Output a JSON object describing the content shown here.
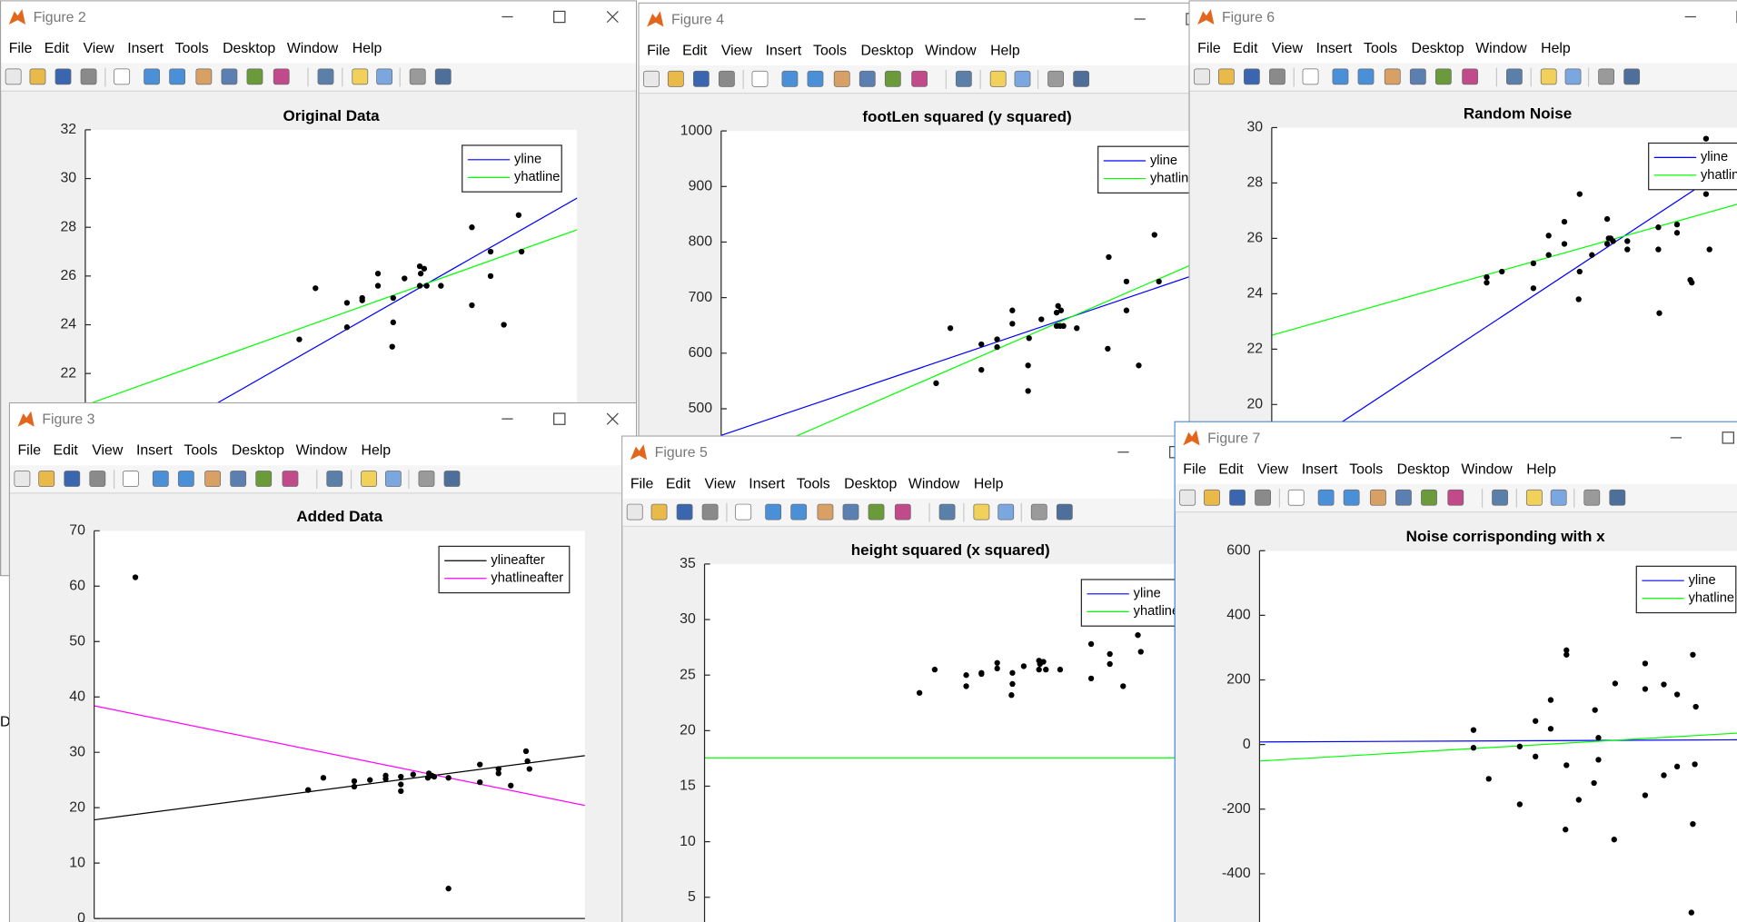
{
  "menu": [
    "File",
    "Edit",
    "View",
    "Insert",
    "Tools",
    "Desktop",
    "Window",
    "Help"
  ],
  "background_fragment": "D",
  "windows": [
    {
      "title": "Figure 2",
      "chart": {
        "type": "scatter",
        "title": "Original Data",
        "xlim": [
          0,
          100
        ],
        "ylim": [
          18,
          32
        ],
        "yticks": [
          22,
          24,
          26,
          28,
          30,
          32
        ],
        "legend_corner": "upper right",
        "legend": [
          {
            "name": "yline",
            "color": "#0000ff"
          },
          {
            "name": "yhatline",
            "color": "#00ff00"
          }
        ],
        "lines": [
          {
            "color": "#0000ff",
            "x": [
              0,
              100
            ],
            "values": [
              17.7,
              29.2
            ]
          },
          {
            "color": "#00ff00",
            "x": [
              0,
              100
            ],
            "values": [
              20.7,
              27.9
            ]
          }
        ],
        "points": {
          "color": "#000000",
          "x": [
            43.5,
            46.8,
            53.2,
            53.2,
            56.3,
            56.3,
            59.5,
            59.5,
            62.6,
            62.6,
            62.4,
            64.9,
            68.0,
            68.2,
            68.9,
            68.0,
            69.4,
            72.3,
            78.6,
            78.6,
            82.4,
            82.4,
            85.1,
            88.1,
            88.7
          ],
          "values": [
            23.4,
            25.5,
            24.9,
            23.9,
            25.0,
            25.1,
            26.1,
            25.6,
            25.1,
            24.1,
            23.1,
            25.9,
            26.4,
            26.1,
            26.3,
            25.6,
            25.6,
            25.6,
            28.0,
            24.8,
            27.0,
            26.0,
            24.0,
            28.5,
            27.0
          ]
        }
      }
    },
    {
      "title": "Figure 3",
      "chart": {
        "type": "scatter",
        "title": "Added Data",
        "xlim": [
          0,
          100
        ],
        "ylim": [
          0,
          70
        ],
        "yticks": [
          0,
          10,
          20,
          30,
          40,
          50,
          60,
          70
        ],
        "legend_corner": "upper right",
        "legend": [
          {
            "name": "ylineafter",
            "color": "#000000"
          },
          {
            "name": "yhatlineafter",
            "color": "#ff00ff"
          }
        ],
        "lines": [
          {
            "color": "#000000",
            "x": [
              0,
              100
            ],
            "values": [
              17.8,
              29.4
            ]
          },
          {
            "color": "#ff00ff",
            "x": [
              0,
              100
            ],
            "values": [
              38.4,
              20.4
            ]
          }
        ],
        "points": {
          "color": "#000000",
          "x": [
            8.4,
            43.6,
            46.7,
            53.0,
            53.0,
            56.2,
            59.4,
            59.4,
            62.5,
            62.5,
            62.5,
            65.0,
            68.2,
            68.8,
            68.0,
            69.3,
            72.2,
            72.2,
            78.6,
            78.6,
            82.4,
            82.4,
            84.9,
            88.0,
            88.3,
            88.7
          ],
          "values": [
            61.6,
            23.2,
            25.4,
            24.8,
            23.8,
            25.0,
            25.8,
            25.2,
            24.2,
            23.0,
            25.6,
            26.0,
            26.2,
            25.8,
            25.4,
            25.6,
            25.4,
            5.4,
            27.8,
            24.6,
            27.0,
            26.2,
            24.0,
            30.2,
            28.4,
            27.0
          ]
        }
      }
    },
    {
      "title": "Figure 4",
      "chart": {
        "type": "scatter",
        "title": "footLen squared (y squared)",
        "xlim": [
          0,
          100
        ],
        "ylim": [
          400,
          1000
        ],
        "yticks": [
          500,
          600,
          700,
          800,
          900,
          1000
        ],
        "legend_corner": "upper right",
        "legend": [
          {
            "name": "yline",
            "color": "#0000ff"
          },
          {
            "name": "yhatline",
            "color": "#00ff00"
          }
        ],
        "lines": [
          {
            "color": "#0000ff",
            "x": [
              0,
              100
            ],
            "values": [
              452,
              752
            ]
          },
          {
            "color": "#00ff00",
            "x": [
              0,
              100
            ],
            "values": [
              392,
              776
            ]
          }
        ],
        "points": {
          "color": "#000000",
          "x": [
            43.7,
            46.6,
            52.9,
            52.9,
            56.1,
            56.1,
            59.2,
            59.2,
            62.4,
            62.4,
            62.6,
            65.1,
            68.2,
            68.5,
            68.9,
            69.1,
            68.2,
            69.6,
            72.3,
            78.8,
            78.6,
            82.4,
            82.4,
            84.9,
            88.1,
            89.0
          ],
          "values": [
            546,
            645,
            616,
            570,
            611,
            625,
            653,
            677,
            578,
            532,
            627,
            661,
            673,
            685,
            649,
            677,
            649,
            649,
            645,
            773,
            608,
            729,
            677,
            578,
            813,
            729
          ]
        }
      }
    },
    {
      "title": "Figure 5",
      "chart": {
        "type": "scatter",
        "title": "height squared (x squared)",
        "xlim": [
          0,
          100
        ],
        "ylim": [
          0,
          35
        ],
        "yticks": [
          5,
          10,
          15,
          20,
          25,
          30,
          35
        ],
        "legend_corner": "upper right",
        "legend": [
          {
            "name": "yline",
            "color": "#0000ff"
          },
          {
            "name": "yhatline",
            "color": "#00ff00"
          }
        ],
        "lines": [
          {
            "color": "#00ff00",
            "x": [
              0,
              100
            ],
            "values": [
              17.55,
              17.55
            ]
          }
        ],
        "points": {
          "color": "#000000",
          "x": [
            43.7,
            46.8,
            53.2,
            53.2,
            56.3,
            56.3,
            59.5,
            59.5,
            62.6,
            62.6,
            62.4,
            64.9,
            68.0,
            68.2,
            68.9,
            68.0,
            69.4,
            72.3,
            78.6,
            78.6,
            82.4,
            82.4,
            85.1,
            88.1,
            88.7
          ],
          "values": [
            23.4,
            25.5,
            25.0,
            24.0,
            25.2,
            25.1,
            26.1,
            25.6,
            25.2,
            24.2,
            23.2,
            25.8,
            26.3,
            26.0,
            26.2,
            25.5,
            25.5,
            25.5,
            27.8,
            24.7,
            26.9,
            26.0,
            24.0,
            28.6,
            27.1
          ]
        }
      }
    },
    {
      "title": "Figure 6",
      "chart": {
        "type": "scatter",
        "title": "Random Noise",
        "xlim": [
          0,
          100
        ],
        "ylim": [
          18,
          30
        ],
        "yticks": [
          20,
          22,
          24,
          26,
          28,
          30
        ],
        "legend_corner": "upper right",
        "legend": [
          {
            "name": "yline",
            "color": "#0000ff"
          },
          {
            "name": "yhatline",
            "color": "#00ff00"
          }
        ],
        "lines": [
          {
            "color": "#0000ff",
            "x": [
              0,
              100
            ],
            "values": [
              17.7,
              29.4
            ]
          },
          {
            "color": "#00ff00",
            "x": [
              0,
              100
            ],
            "values": [
              22.5,
              27.5
            ]
          }
        ],
        "points": {
          "color": "#000000",
          "x": [
            43.7,
            43.7,
            46.8,
            53.2,
            53.2,
            56.3,
            56.3,
            59.5,
            59.5,
            62.6,
            62.6,
            62.4,
            65.1,
            68.2,
            68.5,
            68.9,
            68.2,
            69.4,
            72.3,
            72.3,
            78.6,
            78.6,
            78.8,
            82.4,
            82.4,
            85.1,
            85.4,
            88.3,
            88.3,
            89.0
          ],
          "values": [
            24.6,
            24.4,
            24.8,
            25.1,
            24.2,
            26.1,
            25.4,
            26.6,
            25.8,
            27.6,
            24.8,
            23.8,
            25.4,
            26.7,
            26.0,
            26.0,
            25.8,
            25.9,
            25.9,
            25.6,
            26.4,
            25.6,
            23.3,
            26.5,
            26.2,
            24.5,
            24.4,
            29.6,
            27.6,
            25.6
          ]
        }
      }
    },
    {
      "title": "Figure 7",
      "chart": {
        "type": "scatter",
        "title": "Noise corrisponding with x",
        "xlim": [
          0,
          100
        ],
        "ylim": [
          -600,
          600
        ],
        "yticks": [
          -400,
          -200,
          0,
          200,
          400,
          600
        ],
        "legend_corner": "upper right",
        "legend": [
          {
            "name": "yline",
            "color": "#0000ff"
          },
          {
            "name": "yhatline",
            "color": "#00ff00"
          }
        ],
        "lines": [
          {
            "color": "#0000ff",
            "x": [
              0,
              100
            ],
            "values": [
              8,
              15
            ]
          },
          {
            "color": "#00ff00",
            "x": [
              0,
              100
            ],
            "values": [
              -51,
              38
            ]
          }
        ],
        "points": {
          "color": "#000000",
          "x": [
            43.5,
            43.5,
            46.6,
            52.9,
            52.9,
            56.1,
            56.1,
            59.2,
            59.2,
            62.4,
            62.4,
            62.4,
            62.2,
            64.9,
            68.2,
            68.9,
            68.9,
            68.0,
            72.1,
            72.3,
            78.4,
            78.4,
            78.4,
            82.2,
            82.2,
            84.9,
            84.9,
            88.1,
            88.5,
            88.1,
            88.7,
            87.8
          ],
          "values": [
            45,
            -10,
            -106,
            -185,
            -6,
            73,
            -37,
            138,
            49,
            292,
            278,
            -64,
            -263,
            -171,
            107,
            21,
            -47,
            -119,
            -294,
            189,
            251,
            172,
            -157,
            186,
            -95,
            155,
            -68,
            278,
            -61,
            -246,
            117,
            -520
          ]
        }
      }
    }
  ]
}
